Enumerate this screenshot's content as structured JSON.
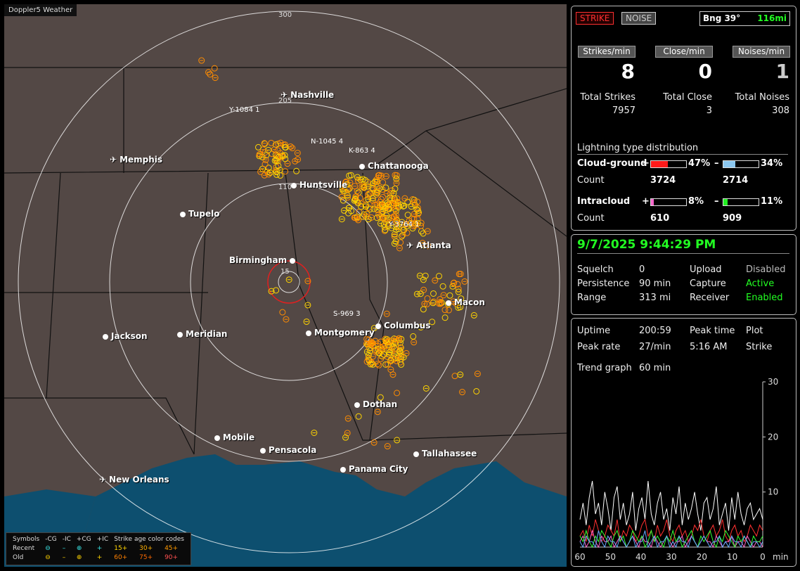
{
  "app_title": "Doppler5 Weather",
  "map": {
    "cities": [
      {
        "name": "Nashville",
        "kind": "plane"
      },
      {
        "name": "Memphis",
        "kind": "plane"
      },
      {
        "name": "Chattanooga",
        "kind": "dot"
      },
      {
        "name": "Huntsville",
        "kind": "dot"
      },
      {
        "name": "Tupelo",
        "kind": "dot"
      },
      {
        "name": "Birmingham",
        "kind": "dot"
      },
      {
        "name": "Atlanta",
        "kind": "plane"
      },
      {
        "name": "Macon",
        "kind": "dot"
      },
      {
        "name": "Columbus",
        "kind": "dot"
      },
      {
        "name": "Montgomery",
        "kind": "dot"
      },
      {
        "name": "Meridian",
        "kind": "dot"
      },
      {
        "name": "Jackson",
        "kind": "dot"
      },
      {
        "name": "Dothan",
        "kind": "dot"
      },
      {
        "name": "Mobile",
        "kind": "dot"
      },
      {
        "name": "Pensacola",
        "kind": "dot"
      },
      {
        "name": "Tallahassee",
        "kind": "dot"
      },
      {
        "name": "Panama City",
        "kind": "dot"
      },
      {
        "name": "New Orleans",
        "kind": "plane"
      }
    ],
    "ring_labels": [
      "300",
      "205",
      "110",
      "15"
    ],
    "storm_labels": [
      "Y-1084 1",
      "N-1045 4",
      "K-863 4",
      "Y-3764 1",
      "S-969 3"
    ],
    "legend": {
      "symbols_label": "Symbols",
      "cols": [
        "-CG",
        "-IC",
        "+CG",
        "+IC"
      ],
      "recent": "Recent",
      "old": "Old",
      "recent_syms": [
        "⊖",
        "–",
        "⊕",
        "+"
      ],
      "old_syms": [
        "⊖",
        "–",
        "⊕",
        "+"
      ],
      "age_title": "Strike age color codes",
      "ages_recent": [
        "15+",
        "30+",
        "45+"
      ],
      "ages_old": [
        "60+",
        "75+",
        "90+"
      ]
    }
  },
  "status": {
    "strike_btn": "STRIKE",
    "noise_btn": "NOISE",
    "bearing": "Bng 39°",
    "distance": "116mi",
    "rates": [
      {
        "label": "Strikes/min",
        "value": "8"
      },
      {
        "label": "Close/min",
        "value": "0"
      },
      {
        "label": "Noises/min",
        "value": "1"
      }
    ],
    "totals": [
      {
        "label": "Total Strikes",
        "value": "7957"
      },
      {
        "label": "Total Close",
        "value": "3"
      },
      {
        "label": "Total Noises",
        "value": "308"
      }
    ],
    "dist_title": "Lightning type distribution",
    "cloud_ground": {
      "label": "Cloud-ground",
      "plus_pct": "47%",
      "minus_pct": "34%",
      "plus_count": "3724",
      "minus_count": "2714",
      "plus_frac": 0.47,
      "minus_frac": 0.34
    },
    "intracloud": {
      "label": "Intracloud",
      "plus_pct": "8%",
      "minus_pct": "11%",
      "plus_count": "610",
      "minus_count": "909",
      "plus_frac": 0.08,
      "minus_frac": 0.11
    },
    "count_label": "Count",
    "plus_sign": "+",
    "minus_sign": "–"
  },
  "settings": {
    "datetime": "9/7/2025 9:44:29 PM",
    "rows": [
      {
        "k": "Squelch",
        "v": "0",
        "k2": "Upload",
        "v2": "Disabled"
      },
      {
        "k": "Persistence",
        "v": "90 min",
        "k2": "Capture",
        "v2": "Active"
      },
      {
        "k": "Range",
        "v": "313 mi",
        "k2": "Receiver",
        "v2": "Enabled"
      }
    ]
  },
  "stats": {
    "uptime_label": "Uptime",
    "uptime": "200:59",
    "peak_time_label": "Peak time",
    "peak_time": "5:16 AM",
    "plot_label": "Plot",
    "plot": "Strike",
    "peak_rate_label": "Peak rate",
    "peak_rate": "27/min",
    "trend_label": "Trend graph",
    "trend": "60 min"
  },
  "chart_data": {
    "type": "line",
    "title": "",
    "xlabel": "min",
    "x_ticks": [
      "60",
      "50",
      "40",
      "30",
      "20",
      "10",
      "0"
    ],
    "y_ticks": [
      "30",
      "20",
      "10"
    ],
    "ylim": [
      0,
      30
    ],
    "xlim": [
      60,
      0
    ],
    "series": [
      {
        "color": "#ffffff",
        "values": [
          5,
          8,
          4,
          9,
          12,
          6,
          8,
          4,
          10,
          7,
          3,
          9,
          11,
          5,
          8,
          4,
          6,
          10,
          3,
          7,
          9,
          5,
          12,
          6,
          4,
          8,
          10,
          5,
          7,
          3,
          9,
          6,
          11,
          4,
          8,
          5,
          7,
          10,
          6,
          3,
          8,
          9,
          5,
          7,
          11,
          4,
          6,
          8,
          3,
          9,
          5,
          10,
          6,
          4,
          7,
          8,
          5,
          6,
          7,
          5
        ]
      },
      {
        "color": "#ff3030",
        "values": [
          2,
          3,
          1,
          4,
          2,
          5,
          3,
          1,
          2,
          4,
          3,
          2,
          5,
          1,
          3,
          2,
          4,
          3,
          1,
          2,
          4,
          5,
          2,
          3,
          1,
          4,
          2,
          3,
          5,
          2,
          1,
          3,
          4,
          2,
          3,
          1,
          2,
          4,
          3,
          5,
          2,
          1,
          3,
          4,
          2,
          3,
          5,
          2,
          1,
          3,
          4,
          2,
          3,
          1,
          2,
          4,
          3,
          2,
          4,
          3
        ]
      },
      {
        "color": "#ff66cc",
        "values": [
          1,
          2,
          0,
          1,
          3,
          1,
          0,
          2,
          1,
          1,
          2,
          0,
          1,
          2,
          1,
          0,
          1,
          2,
          1,
          0,
          2,
          1,
          1,
          0,
          2,
          1,
          0,
          1,
          2,
          1,
          0,
          1,
          1,
          2,
          0,
          1,
          2,
          1,
          0,
          1,
          2,
          1,
          1,
          0,
          2,
          1,
          0,
          1,
          1,
          2,
          0,
          1,
          1,
          0,
          2,
          1,
          0,
          1,
          1,
          0
        ]
      },
      {
        "color": "#33ff33",
        "values": [
          2,
          1,
          3,
          1,
          0,
          2,
          1,
          3,
          2,
          1,
          0,
          2,
          3,
          1,
          2,
          0,
          1,
          3,
          2,
          1,
          2,
          0,
          1,
          3,
          1,
          2,
          1,
          0,
          2,
          1,
          3,
          1,
          2,
          0,
          1,
          2,
          3,
          1,
          0,
          2,
          1,
          2,
          3,
          1,
          0,
          2,
          1,
          3,
          2,
          1,
          0,
          2,
          1,
          2,
          1,
          0,
          2,
          1,
          1,
          2
        ]
      },
      {
        "color": "#66aaff",
        "values": [
          1,
          0,
          2,
          1,
          1,
          0,
          3,
          1,
          0,
          2,
          1,
          1,
          0,
          2,
          1,
          0,
          1,
          2,
          0,
          1,
          1,
          3,
          0,
          1,
          2,
          0,
          1,
          1,
          2,
          0,
          1,
          0,
          2,
          1,
          1,
          0,
          2,
          1,
          0,
          1,
          2,
          1,
          0,
          1,
          1,
          2,
          0,
          1,
          0,
          2,
          1,
          1,
          0,
          2,
          1,
          0,
          1,
          1,
          0,
          1
        ]
      }
    ]
  },
  "colors": {
    "bg": "#534845",
    "water": "#0d4f6f",
    "strike_old": "#ff8c00",
    "strike_new": "#ffd400",
    "ring": "#ffffff",
    "center_ring": "#e02020"
  }
}
